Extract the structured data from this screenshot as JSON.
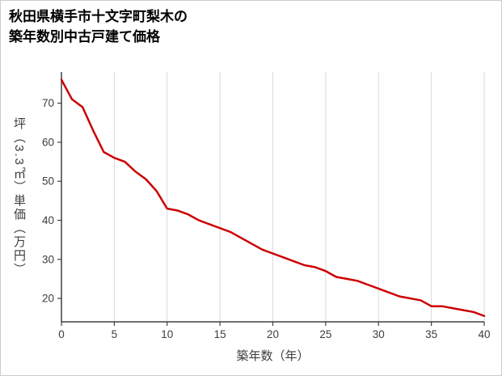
{
  "title": {
    "line1": "秋田県横手市十文字町梨木の",
    "line2": "築年数別中古戸建て価格"
  },
  "chart_data": {
    "type": "line",
    "title": "秋田県横手市十文字町梨木の築年数別中古戸建て価格",
    "xlabel": "築年数（年）",
    "ylabel": "坪（3.3㎡）単価（万円）",
    "x": [
      0,
      1,
      2,
      3,
      4,
      5,
      6,
      7,
      8,
      9,
      10,
      11,
      12,
      13,
      14,
      15,
      16,
      17,
      18,
      19,
      20,
      21,
      22,
      23,
      24,
      25,
      26,
      27,
      28,
      29,
      30,
      31,
      32,
      33,
      34,
      35,
      36,
      37,
      38,
      39,
      40
    ],
    "values": [
      76,
      71,
      69,
      63,
      57.5,
      56,
      55,
      52.5,
      50.5,
      47.5,
      43,
      42.5,
      41.5,
      40,
      39,
      38,
      37,
      35.5,
      34,
      32.5,
      31.5,
      30.5,
      29.5,
      28.5,
      28,
      27,
      25.5,
      25,
      24.5,
      23.5,
      22.5,
      21.5,
      20.5,
      20,
      19.5,
      18,
      18,
      17.5,
      17,
      16.5,
      15.5
    ],
    "xlim": [
      0,
      40
    ],
    "ylim": [
      14,
      78
    ],
    "x_ticks": [
      0,
      5,
      10,
      15,
      20,
      25,
      30,
      35,
      40
    ],
    "y_ticks": [
      20,
      30,
      40,
      50,
      60,
      70
    ],
    "grid": "vertical-only",
    "legend": "none",
    "line_color": "#cc0000",
    "grid_color": "#d9d9d9",
    "axis_color": "#404040",
    "tick_label_color": "#3d3d3d"
  }
}
